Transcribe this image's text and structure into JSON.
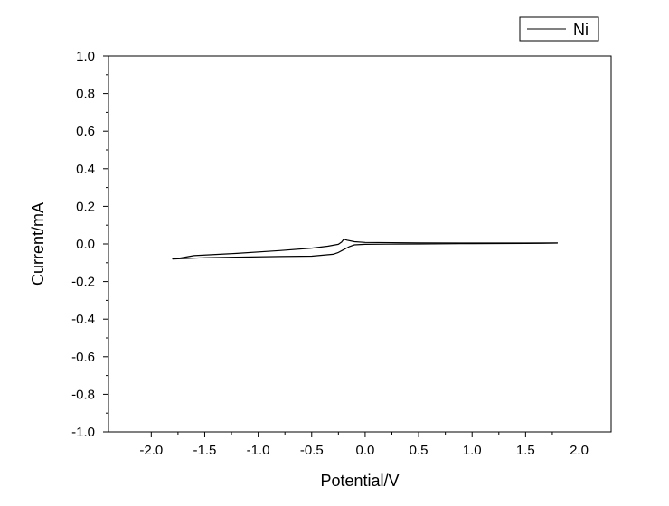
{
  "chart_data": {
    "type": "line",
    "title": "",
    "xlabel": "Potential/V",
    "ylabel": "Current/mA",
    "xlim": [
      -2.4,
      2.3
    ],
    "ylim": [
      -1.0,
      1.0
    ],
    "xticks": [
      -2.0,
      -1.5,
      -1.0,
      -0.5,
      0.0,
      0.5,
      1.0,
      1.5,
      2.0
    ],
    "xtick_labels": [
      "-2.0",
      "-1.5",
      "-1.0",
      "-0.5",
      "0.0",
      "0.5",
      "1.0",
      "1.5",
      "2.0"
    ],
    "yticks": [
      -1.0,
      -0.8,
      -0.6,
      -0.4,
      -0.2,
      0.0,
      0.2,
      0.4,
      0.6,
      0.8,
      1.0
    ],
    "ytick_labels": [
      "-1.0",
      "-0.8",
      "-0.6",
      "-0.4",
      "-0.2",
      "0.0",
      "0.2",
      "0.4",
      "0.6",
      "0.8",
      "1.0"
    ],
    "grid": false,
    "legend_position": "top-right",
    "series": [
      {
        "name": "Ni",
        "color": "#000000",
        "x": [
          1.8,
          1.5,
          1.0,
          0.5,
          0.2,
          0.0,
          -0.1,
          -0.15,
          -0.2,
          -0.25,
          -0.3,
          -0.5,
          -0.8,
          -1.2,
          -1.5,
          -1.7,
          -1.8,
          -1.75,
          -1.6,
          -1.2,
          -0.8,
          -0.5,
          -0.35,
          -0.25,
          -0.22,
          -0.2,
          -0.17,
          -0.1,
          0.0,
          0.5,
          1.0,
          1.5,
          1.8
        ],
        "y": [
          0.004,
          0.003,
          0.002,
          0.0,
          -0.001,
          -0.002,
          -0.005,
          -0.015,
          -0.03,
          -0.045,
          -0.055,
          -0.065,
          -0.067,
          -0.07,
          -0.073,
          -0.078,
          -0.08,
          -0.077,
          -0.062,
          -0.05,
          -0.035,
          -0.022,
          -0.012,
          -0.002,
          0.01,
          0.025,
          0.02,
          0.012,
          0.008,
          0.006,
          0.005,
          0.005,
          0.006
        ]
      }
    ]
  }
}
